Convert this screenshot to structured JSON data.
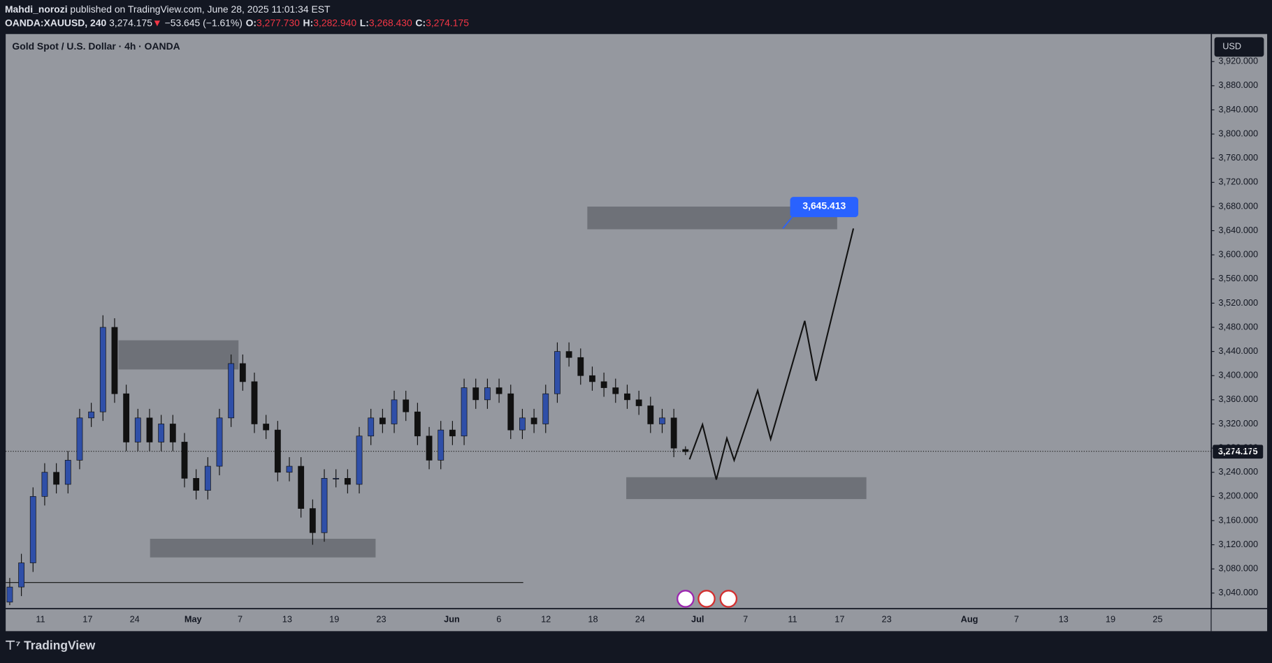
{
  "header": {
    "author": "Mahdi_norozi",
    "published": " published on TradingView.com, June 28, 2025 11:01:34 EST",
    "symbol": "OANDA:XAUUSD, 240",
    "price": "3,274.175",
    "arrow": "▼",
    "change": "−53.645 (−1.61%)",
    "ohlc": [
      {
        "key": "O:",
        "value": "3,277.730"
      },
      {
        "key": "H:",
        "value": "3,282.940"
      },
      {
        "key": "L:",
        "value": "3,268.430"
      },
      {
        "key": "C:",
        "value": "3,274.175"
      }
    ]
  },
  "chart_data": {
    "type": "candlestick",
    "title": "Gold Spot / U.S. Dollar · 4h · OANDA",
    "currency": "USD",
    "open": [
      3025,
      3050,
      3090,
      3200,
      3240,
      3220,
      3260,
      3330,
      3340,
      3480,
      3370,
      3290,
      3330,
      3290,
      3320,
      3290,
      3230,
      3210,
      3250,
      3330,
      3420,
      3390,
      3320,
      3310,
      3240,
      3250,
      3180,
      3140,
      3230,
      3230,
      3220,
      3300,
      3330,
      3320,
      3360,
      3340,
      3300,
      3260,
      3310,
      3300,
      3380,
      3360,
      3380,
      3370,
      3310,
      3330,
      3320,
      3370,
      3440,
      3430,
      3400,
      3390,
      3380,
      3370,
      3360,
      3350,
      3320,
      3330,
      3277.73
    ],
    "high": [
      3065,
      3105,
      3215,
      3255,
      3255,
      3275,
      3345,
      3355,
      3500,
      3495,
      3385,
      3345,
      3345,
      3335,
      3335,
      3305,
      3245,
      3265,
      3345,
      3435,
      3435,
      3405,
      3335,
      3325,
      3265,
      3265,
      3195,
      3245,
      3245,
      3245,
      3315,
      3345,
      3345,
      3375,
      3375,
      3355,
      3315,
      3325,
      3325,
      3395,
      3395,
      3395,
      3395,
      3385,
      3345,
      3345,
      3385,
      3455,
      3455,
      3445,
      3415,
      3405,
      3395,
      3385,
      3375,
      3365,
      3345,
      3345,
      3282.94
    ],
    "low": [
      3020,
      3035,
      3075,
      3185,
      3205,
      3205,
      3245,
      3315,
      3325,
      3355,
      3275,
      3275,
      3275,
      3275,
      3275,
      3215,
      3195,
      3195,
      3235,
      3315,
      3375,
      3305,
      3295,
      3225,
      3225,
      3165,
      3120,
      3125,
      3215,
      3205,
      3205,
      3285,
      3305,
      3305,
      3325,
      3285,
      3245,
      3245,
      3285,
      3285,
      3345,
      3345,
      3355,
      3295,
      3295,
      3305,
      3305,
      3355,
      3415,
      3385,
      3375,
      3365,
      3355,
      3345,
      3335,
      3305,
      3305,
      3265,
      3268.43
    ],
    "close": [
      3050,
      3090,
      3200,
      3240,
      3220,
      3260,
      3330,
      3340,
      3480,
      3370,
      3290,
      3330,
      3290,
      3320,
      3290,
      3230,
      3210,
      3250,
      3330,
      3420,
      3390,
      3320,
      3310,
      3240,
      3250,
      3180,
      3140,
      3230,
      3230,
      3220,
      3300,
      3330,
      3320,
      3360,
      3340,
      3300,
      3260,
      3310,
      3300,
      3380,
      3360,
      3380,
      3370,
      3310,
      3330,
      3320,
      3370,
      3440,
      3430,
      3400,
      3390,
      3380,
      3370,
      3360,
      3350,
      3320,
      3330,
      3280,
      3274.175
    ],
    "up_color": "#2f4fa8",
    "down_color": "#111111",
    "ylim": [
      3014.5,
      3965.6
    ],
    "yticks": [
      {
        "value": 3040,
        "label": "3,040.000"
      },
      {
        "value": 3080,
        "label": "3,080.000"
      },
      {
        "value": 3120,
        "label": "3,120.000"
      },
      {
        "value": 3160,
        "label": "3,160.000"
      },
      {
        "value": 3200,
        "label": "3,200.000"
      },
      {
        "value": 3240,
        "label": "3,240.000"
      },
      {
        "value": 3280,
        "label": "3,280.000"
      },
      {
        "value": 3320,
        "label": "3,320.000"
      },
      {
        "value": 3360,
        "label": "3,360.000"
      },
      {
        "value": 3400,
        "label": "3,400.000"
      },
      {
        "value": 3440,
        "label": "3,440.000"
      },
      {
        "value": 3480,
        "label": "3,480.000"
      },
      {
        "value": 3520,
        "label": "3,520.000"
      },
      {
        "value": 3560,
        "label": "3,560.000"
      },
      {
        "value": 3600,
        "label": "3,600.000"
      },
      {
        "value": 3640,
        "label": "3,640.000"
      },
      {
        "value": 3680,
        "label": "3,680.000"
      },
      {
        "value": 3720,
        "label": "3,720.000"
      },
      {
        "value": 3760,
        "label": "3,760.000"
      },
      {
        "value": 3800,
        "label": "3,800.000"
      },
      {
        "value": 3840,
        "label": "3,840.000"
      },
      {
        "value": 3880,
        "label": "3,880.000"
      },
      {
        "value": 3920,
        "label": "3,920.000"
      }
    ],
    "x_labels": [
      "11",
      "17",
      "24",
      "May",
      "7",
      "13",
      "19",
      "23",
      "Jun",
      "6",
      "12",
      "18",
      "24",
      "Jul",
      "7",
      "11",
      "17",
      "23",
      "Aug",
      "7",
      "13",
      "19",
      "25"
    ],
    "last_price_label": "3,274.175",
    "target_label": "3,645.413"
  },
  "footer": {
    "brand": "TradingView"
  }
}
